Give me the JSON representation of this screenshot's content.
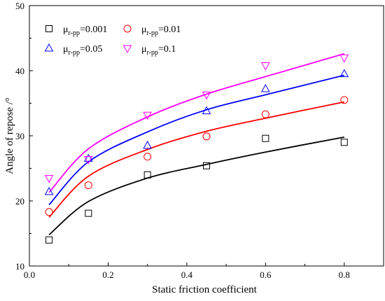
{
  "chart_data": {
    "type": "scatter",
    "title": "",
    "xlabel": "Static friction coefficient",
    "ylabel": "Angle of repose /°",
    "xlim": [
      0.0,
      0.9
    ],
    "ylim": [
      10,
      50
    ],
    "x_ticks": [
      0.0,
      0.2,
      0.4,
      0.6,
      0.8
    ],
    "y_ticks": [
      10,
      20,
      30,
      40,
      50
    ],
    "x_tick_labels": [
      "0.0",
      "0.2",
      "0.4",
      "0.6",
      "0.8"
    ],
    "y_tick_labels": [
      "10",
      "20",
      "30",
      "40",
      "50"
    ],
    "grid": false,
    "legend_position": "top-left",
    "x": [
      0.05,
      0.15,
      0.3,
      0.45,
      0.6,
      0.8
    ],
    "series": [
      {
        "name_main": "μ",
        "name_sub": "r-pp",
        "name_value": "=0.001",
        "marker": "square",
        "color": "#000000",
        "values": [
          14.0,
          18.1,
          24.0,
          25.4,
          29.6,
          29.0
        ],
        "fit_curve": [
          14.8,
          19.9,
          23.5,
          25.6,
          27.5,
          29.8
        ]
      },
      {
        "name_main": "μ",
        "name_sub": "r-pp",
        "name_value": "=0.01",
        "marker": "circle",
        "color": "#ff0000",
        "values": [
          18.3,
          22.4,
          26.8,
          29.9,
          33.3,
          35.5
        ],
        "fit_curve": [
          17.5,
          23.8,
          27.9,
          30.7,
          32.7,
          35.2
        ]
      },
      {
        "name_main": "μ",
        "name_sub": "r-pp",
        "name_value": "=0.05",
        "marker": "triangle-up",
        "color": "#0000ff",
        "values": [
          21.4,
          26.5,
          28.5,
          33.8,
          37.2,
          39.5
        ],
        "fit_curve": [
          19.4,
          26.0,
          30.6,
          34.0,
          36.3,
          39.3
        ]
      },
      {
        "name_main": "μ",
        "name_sub": "r-pp",
        "name_value": "=0.1",
        "marker": "triangle-down",
        "color": "#ff00ff",
        "values": [
          23.5,
          26.4,
          33.2,
          36.3,
          40.8,
          42.0
        ],
        "fit_curve": [
          21.3,
          28.0,
          32.9,
          36.4,
          39.1,
          42.6
        ]
      }
    ]
  }
}
